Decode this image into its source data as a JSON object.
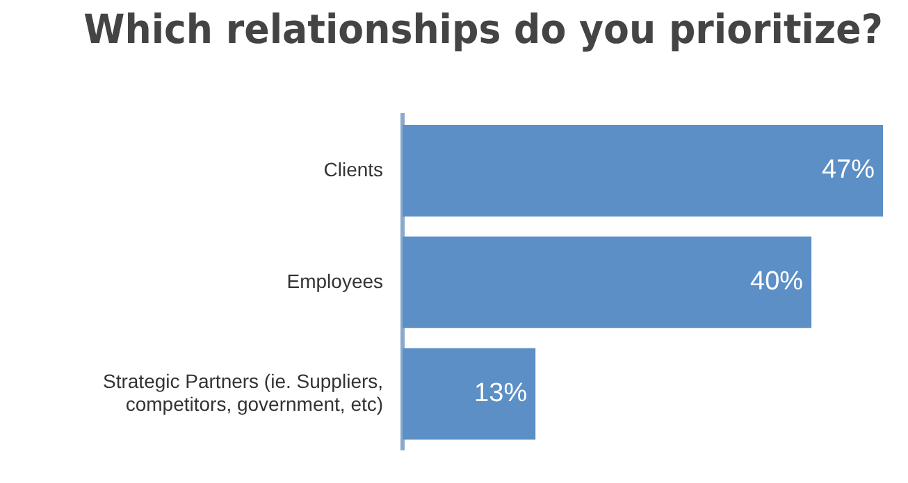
{
  "chart_data": {
    "type": "bar",
    "orientation": "horizontal",
    "title": "Which relationships do you prioritize?",
    "categories": [
      "Clients",
      "Employees",
      "Strategic Partners (ie. Suppliers, competitors, government, etc)"
    ],
    "values": [
      47,
      40,
      13
    ],
    "value_labels": [
      "47%",
      "40%",
      "13%"
    ],
    "color": "#5b8fc6",
    "legend": false
  }
}
